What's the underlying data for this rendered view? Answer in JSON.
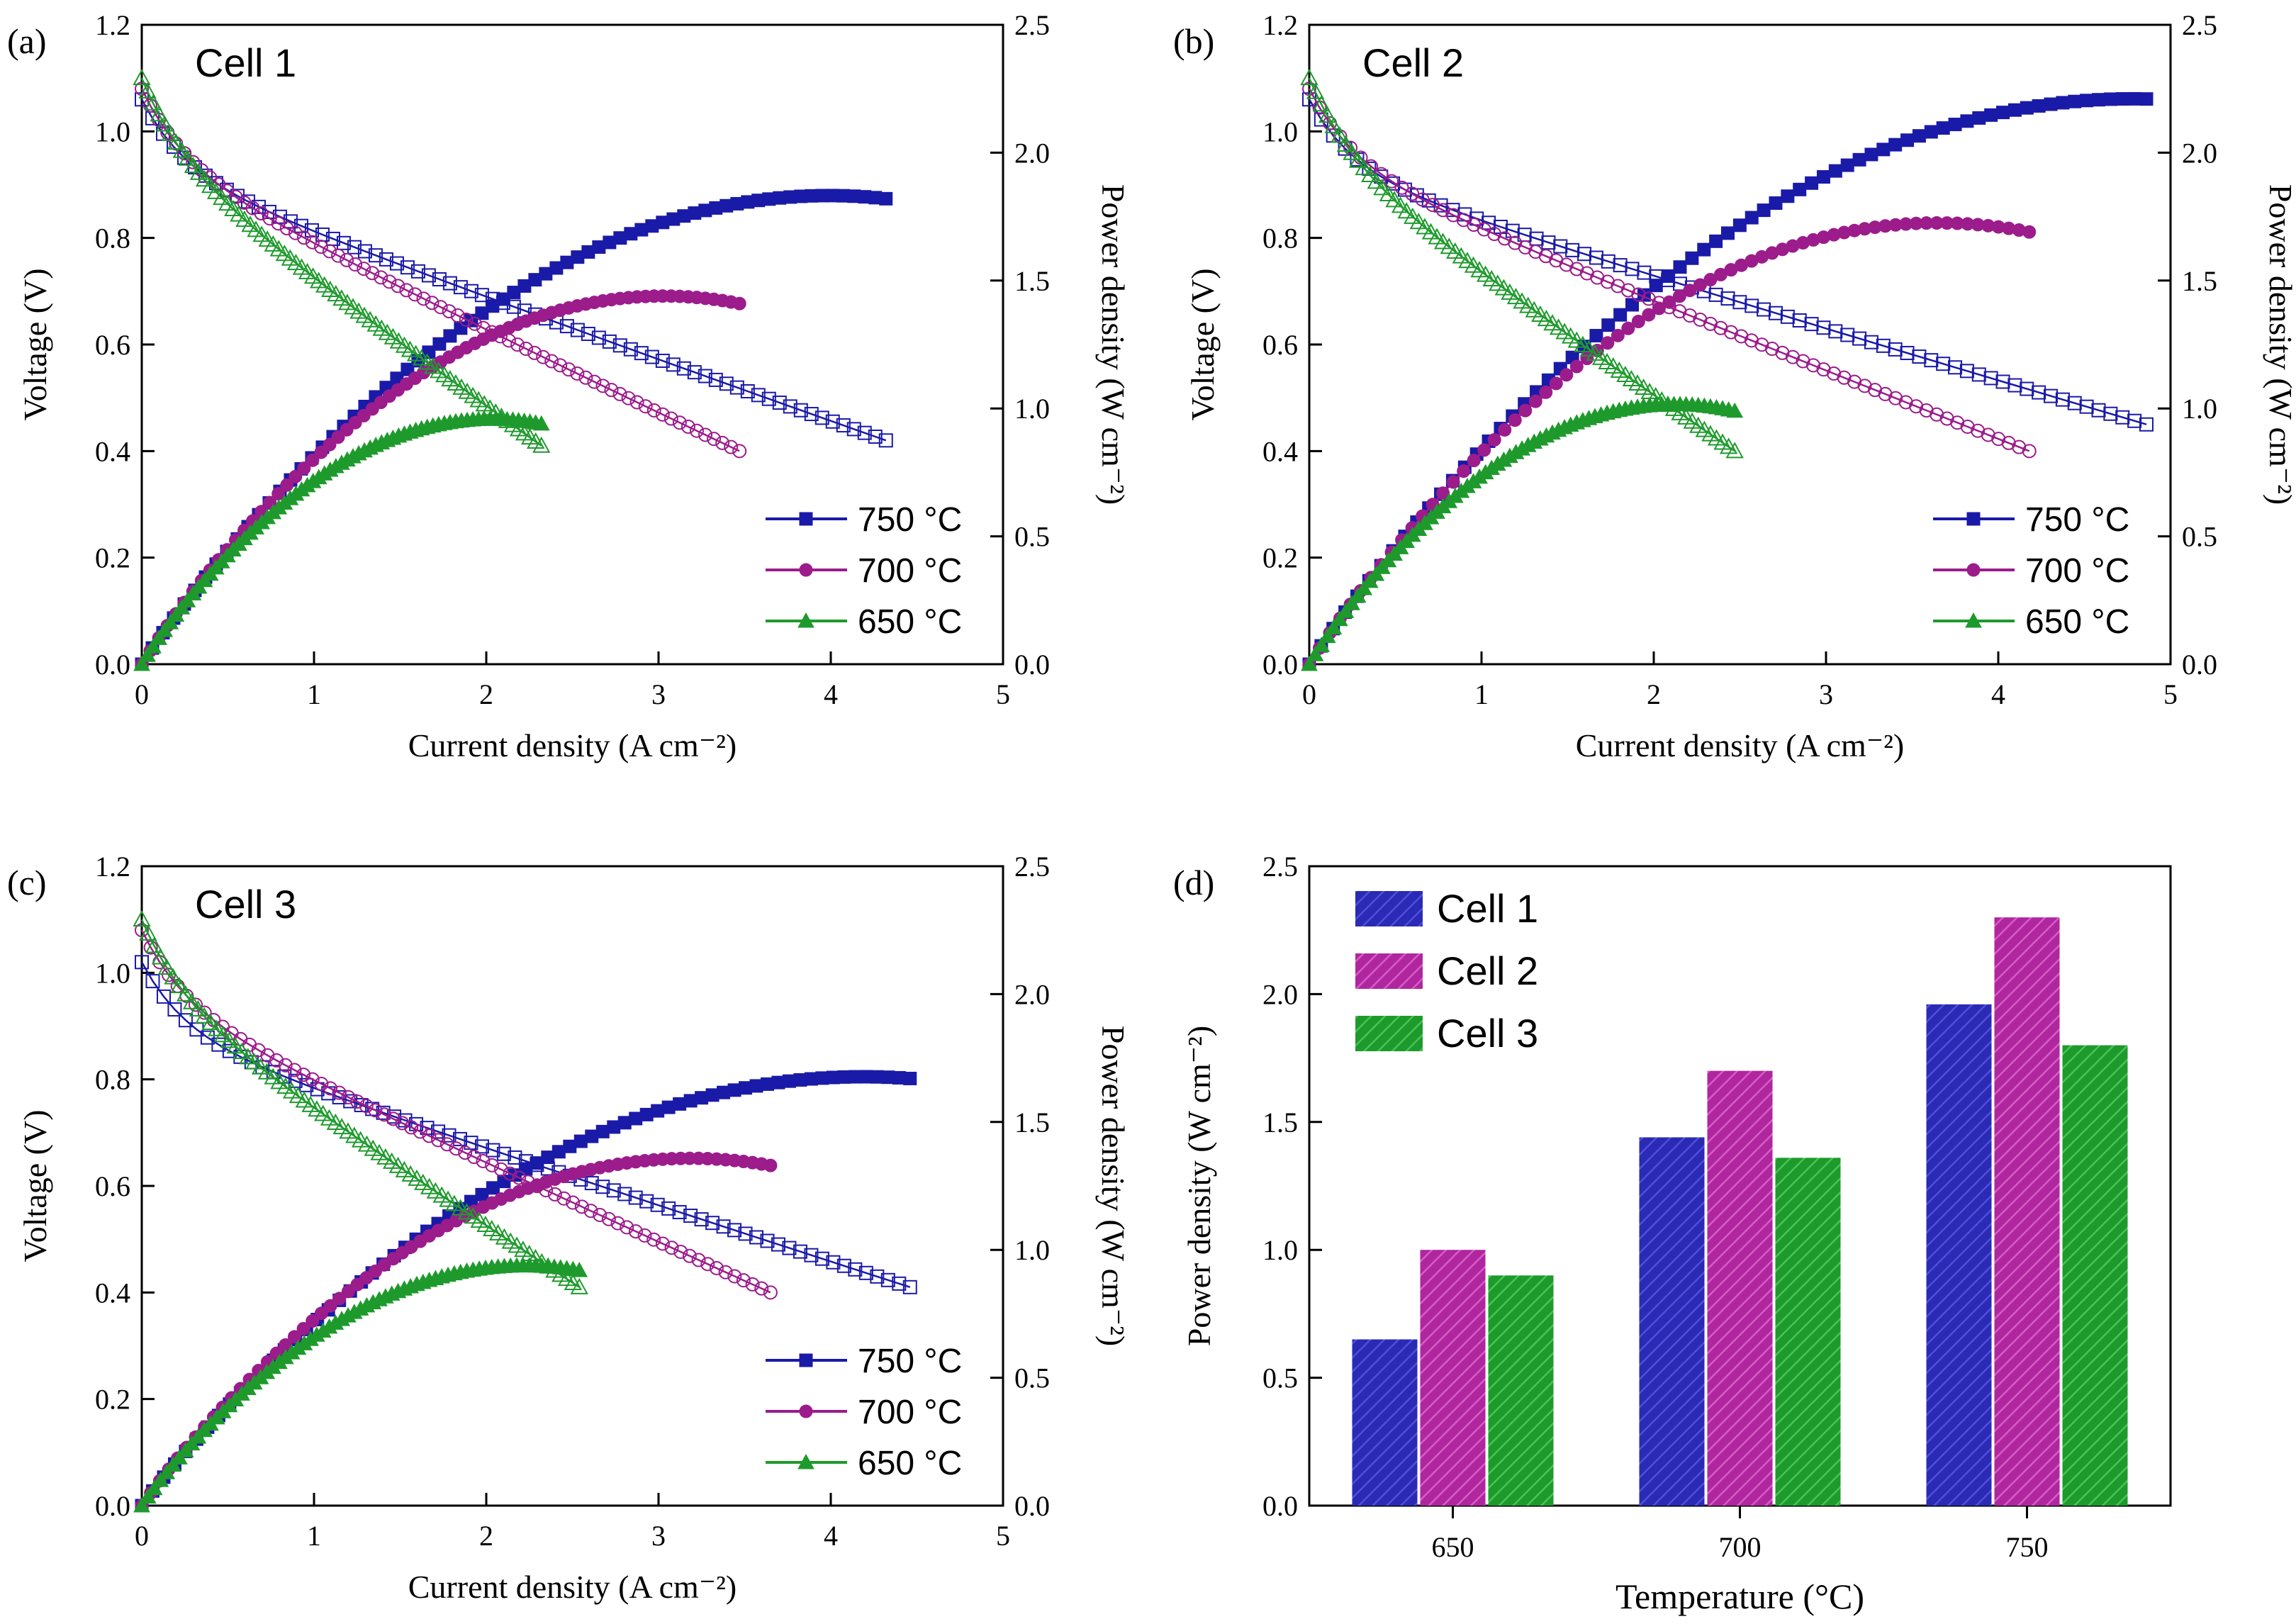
{
  "chart_data": [
    {
      "panel": "(a)",
      "title": "Cell 1",
      "type": "line",
      "xlabel": "Current density (A cm⁻²)",
      "ylabel": "Voltage (V)",
      "y2label": "Power density (W cm⁻²)",
      "xlim": [
        0,
        5
      ],
      "ylim": [
        0,
        1.2
      ],
      "y2lim": [
        0,
        2.5
      ],
      "xticks": [
        "0",
        "1",
        "2",
        "3",
        "4",
        "5"
      ],
      "yticks": [
        "0.0",
        "0.2",
        "0.4",
        "0.6",
        "0.8",
        "1.0",
        "1.2"
      ],
      "y2ticks": [
        "0.0",
        "0.5",
        "1.0",
        "1.5",
        "2.0",
        "2.5"
      ],
      "series": [
        {
          "name": "750 °C",
          "color": "#1a1aa8",
          "marker": "square",
          "ocv": 1.06,
          "v_end": 0.42,
          "i_max": 4.32,
          "power_end": 1.82
        },
        {
          "name": "700 °C",
          "color": "#9c1c8c",
          "marker": "circle",
          "ocv": 1.08,
          "v_end": 0.4,
          "i_max": 3.47,
          "power_end": 1.41
        },
        {
          "name": "650 °C",
          "color": "#1e9a2c",
          "marker": "triangle",
          "ocv": 1.1,
          "v_end": 0.41,
          "i_max": 2.32,
          "power_end": 0.94
        }
      ]
    },
    {
      "panel": "(b)",
      "title": "Cell 2",
      "type": "line",
      "xlabel": "Current density (A cm⁻²)",
      "ylabel": "Voltage (V)",
      "y2label": "Power density (W cm⁻²)",
      "xlim": [
        0,
        5
      ],
      "ylim": [
        0,
        1.2
      ],
      "y2lim": [
        0,
        2.5
      ],
      "xticks": [
        "0",
        "1",
        "2",
        "3",
        "4",
        "5"
      ],
      "yticks": [
        "0.0",
        "0.2",
        "0.4",
        "0.6",
        "0.8",
        "1.0",
        "1.2"
      ],
      "y2ticks": [
        "0.0",
        "0.5",
        "1.0",
        "1.5",
        "2.0",
        "2.5"
      ],
      "series": [
        {
          "name": "750 °C",
          "color": "#1a1aa8",
          "marker": "square",
          "ocv": 1.06,
          "v_end": 0.45,
          "i_max": 4.86,
          "power_end": 2.21
        },
        {
          "name": "700 °C",
          "color": "#9c1c8c",
          "marker": "circle",
          "ocv": 1.08,
          "v_end": 0.4,
          "i_max": 4.18,
          "power_end": 1.69
        },
        {
          "name": "650 °C",
          "color": "#1e9a2c",
          "marker": "triangle",
          "ocv": 1.1,
          "v_end": 0.4,
          "i_max": 2.47,
          "power_end": 0.99
        }
      ]
    },
    {
      "panel": "(c)",
      "title": "Cell 3",
      "type": "line",
      "xlabel": "Current density (A cm⁻²)",
      "ylabel": "Voltage (V)",
      "y2label": "Power density (W cm⁻²)",
      "xlim": [
        0,
        5
      ],
      "ylim": [
        0,
        1.2
      ],
      "y2lim": [
        0,
        2.5
      ],
      "xticks": [
        "0",
        "1",
        "2",
        "3",
        "4",
        "5"
      ],
      "yticks": [
        "0.0",
        "0.2",
        "0.4",
        "0.6",
        "0.8",
        "1.0",
        "1.2"
      ],
      "y2ticks": [
        "0.0",
        "0.5",
        "1.0",
        "1.5",
        "2.0",
        "2.5"
      ],
      "series": [
        {
          "name": "750 °C",
          "color": "#1a1aa8",
          "marker": "square",
          "ocv": 1.02,
          "v_end": 0.41,
          "i_max": 4.46,
          "power_end": 1.67
        },
        {
          "name": "700 °C",
          "color": "#9c1c8c",
          "marker": "circle",
          "ocv": 1.08,
          "v_end": 0.4,
          "i_max": 3.65,
          "power_end": 1.33
        },
        {
          "name": "650 °C",
          "color": "#1e9a2c",
          "marker": "triangle",
          "ocv": 1.1,
          "v_end": 0.41,
          "i_max": 2.54,
          "power_end": 0.92
        }
      ]
    },
    {
      "panel": "(d)",
      "type": "bar",
      "xlabel": "Temperature (°C)",
      "ylabel": "Power density (W cm⁻²)",
      "ylim": [
        0,
        2.5
      ],
      "yticks": [
        "0.0",
        "0.5",
        "1.0",
        "1.5",
        "2.0",
        "2.5"
      ],
      "categories": [
        "650",
        "700",
        "750"
      ],
      "series": [
        {
          "name": "Cell 1",
          "color": "#2a2ab4",
          "values": [
            0.65,
            1.44,
            1.96
          ]
        },
        {
          "name": "Cell 2",
          "color": "#b0269e",
          "values": [
            1.0,
            1.7,
            2.3
          ]
        },
        {
          "name": "Cell 3",
          "color": "#1e9a2c",
          "values": [
            0.9,
            1.36,
            1.8
          ]
        }
      ]
    }
  ]
}
